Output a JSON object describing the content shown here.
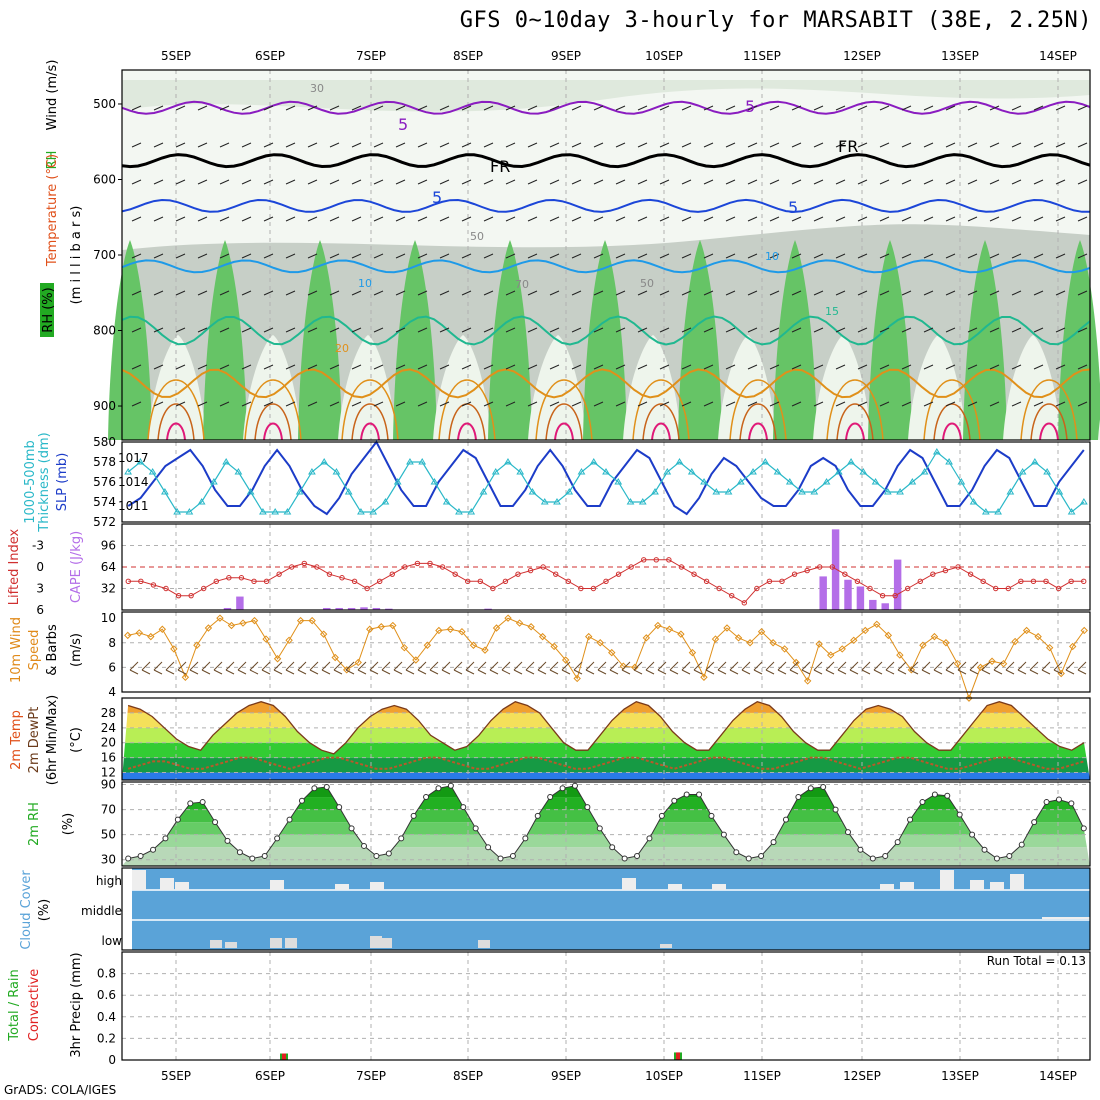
{
  "title": "GFS 0~10day 3-hourly for MARSABIT (38E, 2.25N)",
  "footer": "GrADS: COLA/IGES",
  "colors": {
    "frame": "#000000",
    "grid": "#b0b0b0",
    "cloud": "#5aa3d8",
    "precip_total": "#22aa22",
    "precip_conv": "#e02020",
    "cape": "#b46ee8",
    "li": "#d03030",
    "wind": "#e0901a",
    "slp": "#1c3cc8",
    "thk": "#2ab8c8"
  },
  "chart_data": [
    {
      "type": "contour",
      "panel": "upper-air",
      "xlabel_top": [
        "5SEP",
        "6SEP",
        "7SEP",
        "8SEP",
        "9SEP",
        "10SEP",
        "11SEP",
        "12SEP",
        "13SEP",
        "14SEP"
      ],
      "yticks": [
        500,
        600,
        700,
        800,
        900
      ],
      "ylabel": [
        "Wind (m/s)",
        "Temperature (°C)",
        "RH (%)",
        "(m i l l i b a r s)"
      ],
      "contour_labels": [
        "5",
        "5",
        "FR",
        "FR",
        "5",
        "5",
        "10",
        "10",
        "15",
        "20",
        "30",
        "50",
        "50",
        "70"
      ],
      "temperature_levels_C": [
        {
          "value": -5,
          "mb": 505
        },
        {
          "value": 0,
          "mb": 575
        },
        {
          "value": 5,
          "mb": 635
        },
        {
          "value": 10,
          "mb": 715
        },
        {
          "value": 15,
          "mb": 800
        },
        {
          "value": 20,
          "mb": 870
        }
      ]
    },
    {
      "type": "line",
      "panel": "slp-thickness",
      "series": [
        {
          "name": "SLP (mb)",
          "axis": "right",
          "values": [
            1011,
            1012,
            1014,
            1016,
            1017,
            1018,
            1016,
            1013,
            1011,
            1011,
            1013,
            1016,
            1018,
            1016,
            1013,
            1011,
            1010,
            1012,
            1015,
            1017,
            1019,
            1016,
            1013,
            1011,
            1011,
            1014,
            1016,
            1018,
            1017,
            1014,
            1011,
            1011,
            1013,
            1016,
            1018,
            1016,
            1013,
            1011,
            1011,
            1014,
            1016,
            1018,
            1017,
            1014,
            1011,
            1010,
            1012,
            1015,
            1017,
            1016,
            1014,
            1012,
            1011,
            1011,
            1013,
            1016,
            1017,
            1016,
            1013,
            1011,
            1011,
            1013,
            1016,
            1018,
            1017,
            1014,
            1011,
            1011,
            1013,
            1016,
            1018,
            1017,
            1014,
            1011,
            1011,
            1014,
            1016,
            1018
          ]
        },
        {
          "name": "Thickness 1000-500mb (dm)",
          "axis": "left",
          "values": [
            577,
            578,
            577,
            575,
            573,
            573,
            574,
            576,
            578,
            577,
            575,
            573,
            573,
            573,
            575,
            577,
            578,
            577,
            575,
            573,
            573,
            574,
            576,
            578,
            578,
            576,
            574,
            573,
            573,
            575,
            577,
            578,
            577,
            575,
            574,
            574,
            575,
            577,
            578,
            577,
            576,
            574,
            574,
            575,
            577,
            578,
            577,
            576,
            575,
            575,
            576,
            577,
            578,
            577,
            576,
            575,
            575,
            576,
            577,
            578,
            577,
            576,
            575,
            575,
            576,
            577,
            579,
            578,
            576,
            574,
            573,
            573,
            575,
            577,
            578,
            577,
            575,
            573,
            574
          ]
        }
      ],
      "ylim_left": [
        572,
        580
      ],
      "ylim_right": [
        1009,
        1019
      ],
      "yticks_left": [
        572,
        574,
        576,
        578,
        580
      ],
      "yticks_right": [
        1011,
        1014,
        1017
      ]
    },
    {
      "type": "bar+line",
      "panel": "cape-li",
      "series": [
        {
          "name": "Lifted Index",
          "values": [
            2,
            2,
            2.5,
            3,
            4,
            4,
            3,
            2,
            1.5,
            1.5,
            2,
            2,
            1,
            0,
            -0.5,
            0,
            1,
            1.5,
            2,
            3,
            2,
            1,
            0,
            -0.5,
            -0.5,
            0,
            1,
            2,
            2,
            3,
            2,
            1,
            0.5,
            0,
            1,
            2,
            3,
            3,
            2,
            1,
            0,
            -1,
            -1,
            -1,
            0,
            1,
            2,
            3,
            4,
            5,
            3,
            2,
            2,
            1,
            0.5,
            0,
            0,
            1,
            2,
            3,
            4,
            4,
            3,
            2,
            1,
            0.5,
            0,
            1,
            2,
            3,
            3,
            2,
            2,
            2,
            3,
            2,
            2
          ]
        },
        {
          "name": "CAPE (J/kg)",
          "values": [
            0,
            0,
            0,
            0,
            0,
            0,
            0,
            0,
            3,
            20,
            0,
            0,
            0,
            0,
            0,
            0,
            3,
            3,
            3,
            4,
            3,
            2,
            0,
            0,
            0,
            0,
            0,
            0,
            0,
            2,
            0,
            0,
            0,
            0,
            0,
            0,
            0,
            0,
            0,
            0,
            0,
            0,
            0,
            0,
            0,
            0,
            0,
            0,
            0,
            0,
            0,
            0,
            0,
            0,
            0,
            0,
            50,
            120,
            45,
            35,
            15,
            10,
            75,
            0,
            0,
            0,
            0,
            0,
            0,
            0,
            0,
            0,
            0,
            0,
            0,
            0,
            0,
            0
          ]
        }
      ],
      "ylim_li": [
        -6,
        6
      ],
      "yticks_li": [
        -3,
        0,
        3,
        6
      ],
      "yticks_cape": [
        32,
        64,
        96
      ]
    },
    {
      "type": "line",
      "panel": "wind10m",
      "series": [
        {
          "name": "10m Wind Speed (m/s)",
          "values": [
            8.6,
            8.8,
            8.5,
            9.1,
            7.5,
            5.2,
            7.8,
            9.2,
            10,
            9.4,
            9.6,
            9.8,
            8.3,
            6.7,
            8.2,
            9.8,
            9.8,
            8.7,
            6.8,
            5.8,
            6.4,
            9.1,
            9.3,
            9.4,
            7.6,
            6.6,
            7.8,
            9.0,
            9.1,
            8.9,
            7.8,
            7.4,
            9.2,
            10,
            9.6,
            9.3,
            8.5,
            7.7,
            6.6,
            5.1,
            8.5,
            8.0,
            7.2,
            6.1,
            6.0,
            8.4,
            9.4,
            9.1,
            8.7,
            7.2,
            5.2,
            8.3,
            9.2,
            8.4,
            8.0,
            8.9,
            8.0,
            7.5,
            6.4,
            4.9,
            7.9,
            7.0,
            7.5,
            8.2,
            9.0,
            9.5,
            8.6,
            7.0,
            5.8,
            7.8,
            8.5,
            8.0,
            6.3,
            3.5,
            6.0,
            6.5,
            6.3,
            8.1,
            9.0,
            8.5,
            7.6,
            5.5,
            7.7,
            9.0
          ]
        }
      ],
      "ylim": [
        4,
        10
      ],
      "yticks": [
        4,
        6,
        8,
        10
      ]
    },
    {
      "type": "area",
      "panel": "temp2m",
      "series": [
        {
          "name": "2m Temp (°C)",
          "values": [
            30,
            29,
            27,
            24,
            21,
            19,
            18,
            22,
            25,
            28,
            30,
            31,
            30,
            27,
            23,
            20,
            18,
            17,
            20,
            24,
            27,
            29,
            30,
            29,
            26,
            22,
            20,
            18,
            19,
            22,
            26,
            29,
            31,
            30,
            28,
            24,
            20,
            18,
            18,
            22,
            26,
            29,
            31,
            30,
            27,
            23,
            20,
            18,
            18,
            22,
            26,
            29,
            31,
            30,
            27,
            23,
            20,
            18,
            18,
            22,
            26,
            29,
            30,
            29,
            27,
            23,
            20,
            18,
            18,
            22,
            26,
            30,
            31,
            30,
            27,
            24,
            21,
            19,
            18,
            20
          ]
        },
        {
          "name": "2m DewPt (°C)",
          "values": [
            13,
            14,
            15,
            15,
            14,
            13,
            13,
            14,
            15,
            16,
            16,
            15,
            14,
            13,
            14,
            15,
            16,
            16,
            15,
            14,
            13,
            13,
            14,
            15,
            16,
            16,
            15,
            14,
            13,
            13,
            14,
            15,
            16,
            16,
            15,
            14,
            13,
            13,
            14,
            15,
            16,
            16,
            15,
            14,
            13,
            14,
            15,
            16,
            16,
            15,
            14,
            13,
            13,
            14,
            15,
            16,
            16,
            15,
            14,
            13,
            14,
            15,
            16,
            16,
            15,
            14,
            13,
            13,
            14,
            15,
            16,
            16,
            15,
            14,
            13,
            13,
            14,
            15
          ]
        }
      ],
      "ylim": [
        10,
        32
      ],
      "yticks": [
        12,
        16,
        20,
        24,
        28
      ]
    },
    {
      "type": "area",
      "panel": "rh2m",
      "series": [
        {
          "name": "2m RH (%)",
          "values": [
            31,
            33,
            38,
            47,
            62,
            75,
            76,
            60,
            45,
            36,
            31,
            33,
            47,
            62,
            77,
            87,
            88,
            72,
            55,
            41,
            33,
            35,
            47,
            65,
            80,
            87,
            89,
            72,
            55,
            40,
            31,
            33,
            47,
            65,
            80,
            87,
            89,
            72,
            55,
            40,
            31,
            33,
            47,
            65,
            77,
            82,
            82,
            65,
            50,
            36,
            31,
            33,
            44,
            62,
            80,
            87,
            88,
            70,
            52,
            38,
            31,
            33,
            44,
            62,
            76,
            82,
            81,
            66,
            50,
            38,
            31,
            33,
            42,
            60,
            76,
            78,
            75,
            55
          ]
        }
      ],
      "ylim": [
        25,
        92
      ],
      "yticks": [
        30,
        50,
        70,
        90
      ]
    },
    {
      "type": "bar",
      "panel": "cloud",
      "yticklabels": [
        "high",
        "middle",
        "low"
      ],
      "ylabel": [
        "Cloud Cover",
        "(%)"
      ]
    },
    {
      "type": "bar",
      "panel": "precip",
      "ylabel": [
        "3hr Precip (mm)",
        "Total / Rain",
        "Convective"
      ],
      "annotation": "Run Total = 0.13",
      "yticks": [
        0,
        0.2,
        0.4,
        0.6,
        0.8
      ],
      "ylim": [
        0,
        1
      ],
      "xlabel_bottom": [
        "5SEP",
        "6SEP",
        "7SEP",
        "8SEP",
        "9SEP",
        "10SEP",
        "11SEP",
        "12SEP",
        "13SEP",
        "14SEP"
      ],
      "bars": [
        {
          "x_day": "6SEP",
          "value": 0.06
        },
        {
          "x_day": "10SEP",
          "value": 0.07
        }
      ]
    }
  ]
}
